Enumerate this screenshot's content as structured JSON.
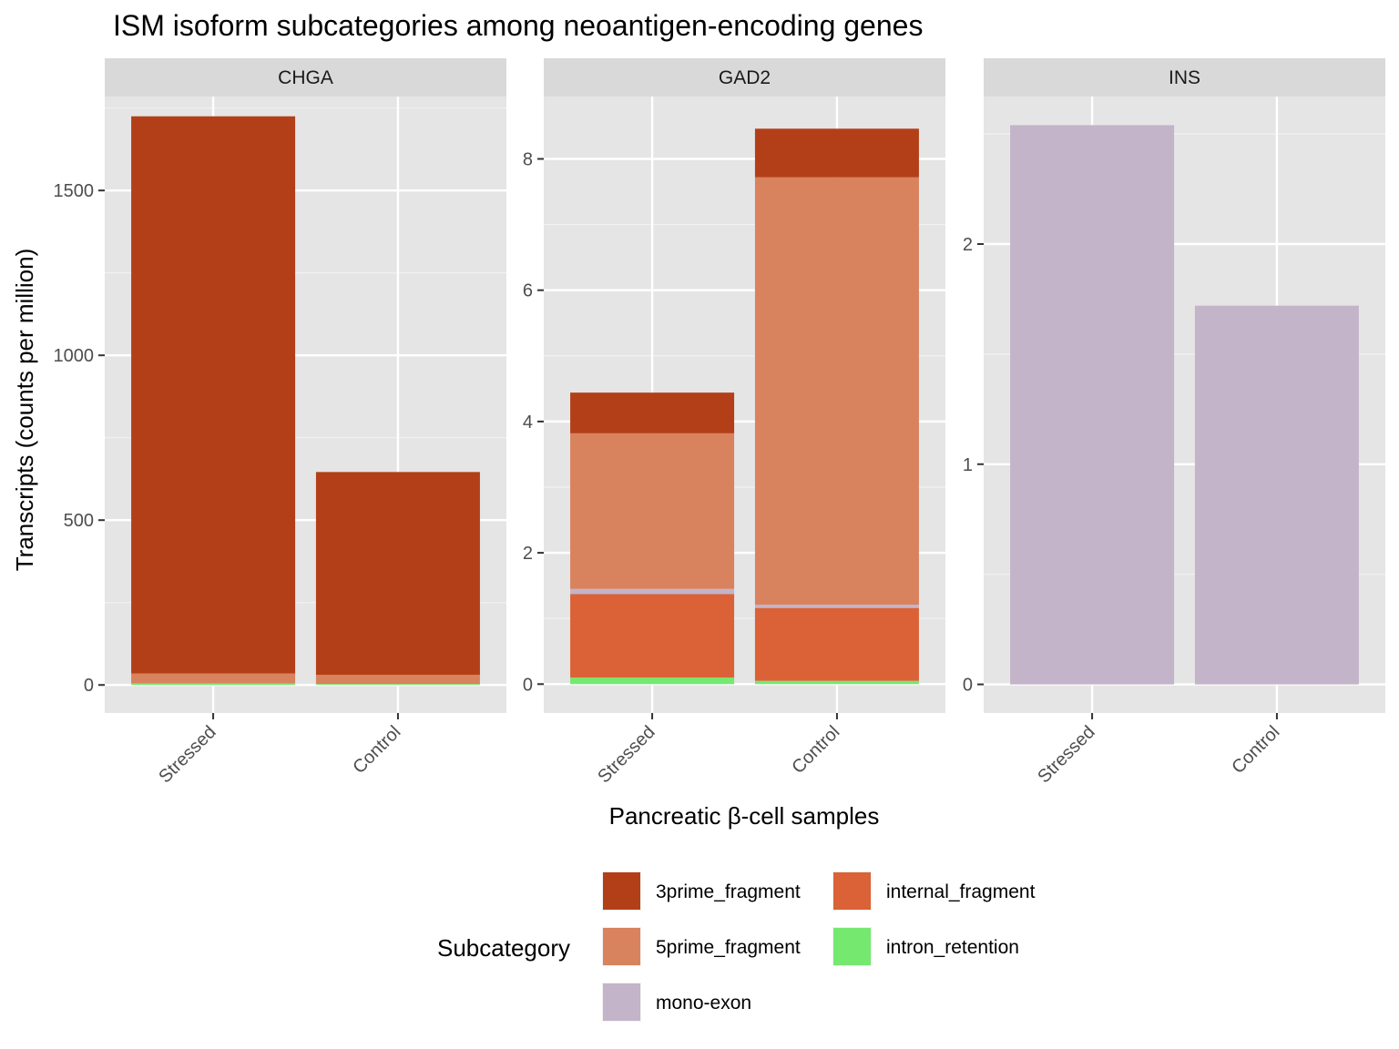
{
  "chart_data": {
    "type": "bar",
    "stacked": true,
    "faceted": true,
    "title": "ISM isoform subcategories among neoantigen-encoding genes",
    "xlabel": "Pancreatic β-cell samples",
    "ylabel": "Transcripts (counts per million)",
    "categories": [
      "Stressed",
      "Control"
    ],
    "grid": true,
    "legend": {
      "title": "Subcategory",
      "position": "bottom",
      "entries": [
        {
          "key": "3prime_fragment",
          "label": "3prime_fragment",
          "color": "#b33f18"
        },
        {
          "key": "5prime_fragment",
          "label": "5prime_fragment",
          "color": "#d9825e"
        },
        {
          "key": "mono-exon",
          "label": "mono-exon",
          "color": "#c3b4c9"
        },
        {
          "key": "internal_fragment",
          "label": "internal_fragment",
          "color": "#da6236"
        },
        {
          "key": "intron_retention",
          "label": "intron_retention",
          "color": "#75e870"
        }
      ]
    },
    "stack_order": [
      "intron_retention",
      "internal_fragment",
      "mono-exon",
      "5prime_fragment",
      "3prime_fragment"
    ],
    "facets": [
      {
        "name": "CHGA",
        "ylim": [
          -85,
          1785
        ],
        "yticks": [
          0,
          500,
          1000,
          1500
        ],
        "ytick_labels": [
          "0",
          "500",
          "1000",
          "1500"
        ],
        "series": [
          {
            "name": "intron_retention",
            "values": [
              5,
              3
            ]
          },
          {
            "name": "internal_fragment",
            "values": [
              0,
              0
            ]
          },
          {
            "name": "mono-exon",
            "values": [
              0,
              0
            ]
          },
          {
            "name": "5prime_fragment",
            "values": [
              30,
              28
            ]
          },
          {
            "name": "3prime_fragment",
            "values": [
              1690,
              615
            ]
          }
        ]
      },
      {
        "name": "GAD2",
        "ylim": [
          -0.44,
          8.95
        ],
        "yticks": [
          0,
          2,
          4,
          6,
          8
        ],
        "ytick_labels": [
          "0",
          "2",
          "4",
          "6",
          "8"
        ],
        "series": [
          {
            "name": "intron_retention",
            "values": [
              0.1,
              0.05
            ]
          },
          {
            "name": "internal_fragment",
            "values": [
              1.27,
              1.11
            ]
          },
          {
            "name": "mono-exon",
            "values": [
              0.08,
              0.05
            ]
          },
          {
            "name": "5prime_fragment",
            "values": [
              2.37,
              6.51
            ]
          },
          {
            "name": "3prime_fragment",
            "values": [
              0.62,
              0.74
            ]
          }
        ]
      },
      {
        "name": "INS",
        "ylim": [
          -0.13,
          2.67
        ],
        "yticks": [
          0,
          1,
          2
        ],
        "ytick_labels": [
          "0",
          "1",
          "2"
        ],
        "series": [
          {
            "name": "intron_retention",
            "values": [
              0,
              0
            ]
          },
          {
            "name": "internal_fragment",
            "values": [
              0,
              0
            ]
          },
          {
            "name": "mono-exon",
            "values": [
              2.54,
              1.72
            ]
          },
          {
            "name": "5prime_fragment",
            "values": [
              0,
              0
            ]
          },
          {
            "name": "3prime_fragment",
            "values": [
              0,
              0
            ]
          }
        ]
      }
    ]
  }
}
